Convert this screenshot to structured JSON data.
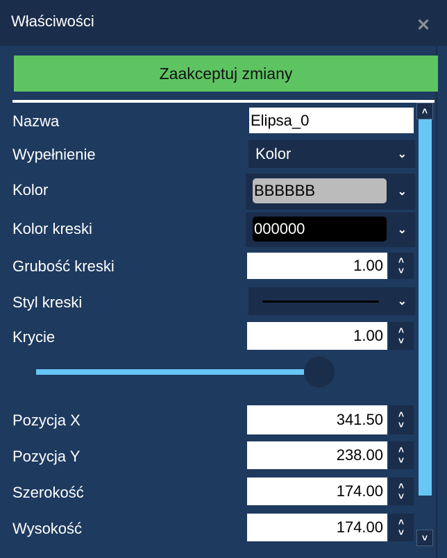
{
  "window": {
    "title": "Właściwości",
    "close_icon": "close-icon"
  },
  "accept_button": "Zaakceptuj zmiany",
  "colors": {
    "accent_green": "#5ec462",
    "background": "#1e3a5f",
    "titlebar": "#1a2d4a",
    "scroll_thumb": "#66c6f5"
  },
  "fields": {
    "name": {
      "label": "Nazwa",
      "value": "Elipsa_0"
    },
    "fill": {
      "label": "Wypełnienie",
      "value": "Kolor"
    },
    "color": {
      "label": "Kolor",
      "value": "BBBBBB",
      "swatch": "#BBBBBB"
    },
    "stroke_color": {
      "label": "Kolor kreski",
      "value": "000000",
      "swatch": "#000000"
    },
    "stroke_width": {
      "label": "Grubość kreski",
      "value": "1.00"
    },
    "stroke_style": {
      "label": "Styl kreski",
      "value": "solid"
    },
    "opacity": {
      "label": "Krycie",
      "value": "1.00",
      "slider_fraction": 1.0
    },
    "pos_x": {
      "label": "Pozycja X",
      "value": "341.50"
    },
    "pos_y": {
      "label": "Pozycja Y",
      "value": "238.00"
    },
    "width": {
      "label": "Szerokość",
      "value": "174.00"
    },
    "height": {
      "label": "Wysokość",
      "value": "174.00"
    }
  }
}
